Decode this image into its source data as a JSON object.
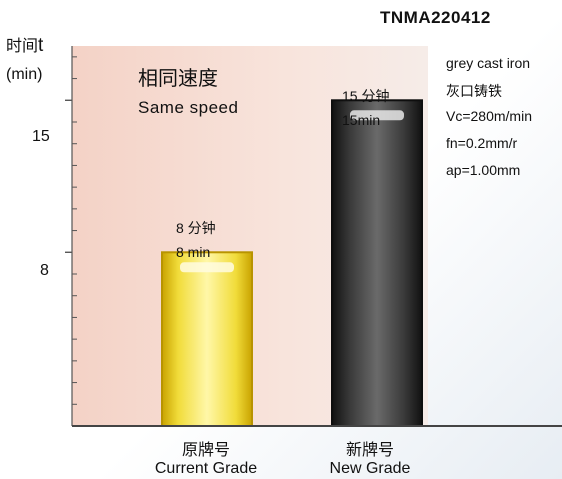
{
  "model_code": "TNMA220412",
  "ylabel_cn": "时间",
  "ylabel_sym": "t",
  "ylabel_unit": "(min)",
  "note_cn": "相同速度",
  "note_en": "Same speed",
  "conditions": [
    "grey cast iron",
    "灰口铸铁",
    "Vc=280m/min",
    "fn=0.2mm/r",
    "ap=1.00mm"
  ],
  "colors": {
    "current": "#e9cc22",
    "new": "#2a2a2a",
    "plot_bg": "#f6ddd4"
  },
  "chart_data": {
    "type": "bar",
    "categories": [
      "原牌号",
      "新牌号"
    ],
    "categories_en": [
      "Current Grade",
      "New Grade"
    ],
    "values": [
      8,
      15
    ],
    "value_labels_cn": [
      "8 分钟",
      "15 分钟"
    ],
    "value_labels_en": [
      "8 min",
      "15min"
    ],
    "yticks": [
      8,
      15
    ],
    "ylim": [
      0,
      17.5
    ]
  }
}
